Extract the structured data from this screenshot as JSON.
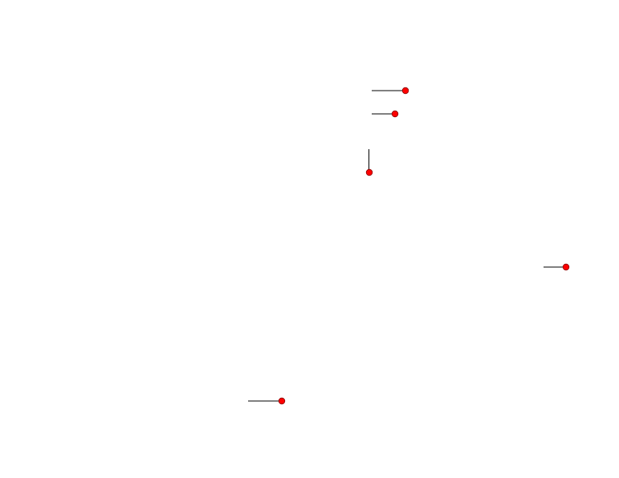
{
  "colors": {
    "marker_fill": "#ff0000",
    "marker_stroke": "#8b0000",
    "leader_line": "#000000",
    "background": "#ffffff"
  }
}
